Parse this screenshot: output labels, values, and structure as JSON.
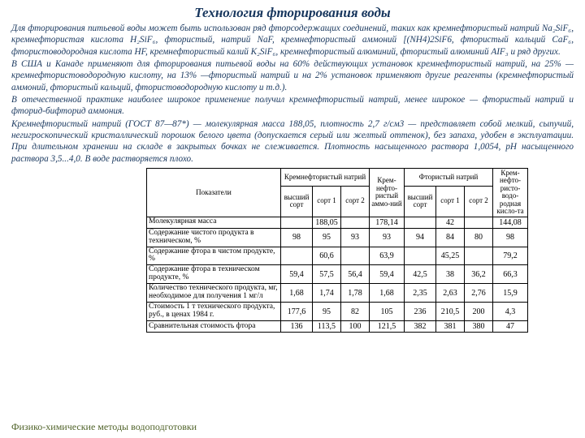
{
  "title": "Технология фторирования воды",
  "paragraphs": {
    "p1": "Для фторирования питьевой воды может быть использован ряд фторсодержащих соединений, таких как кремнефтористый натрий Na₂SiF₆, кремнефтористая кислота H₂SiF₆, фтористый, натрий NaF, кремнефтористый аммоний [(NH4)2SiF6, фтористый кальций CaF₆, фтористоводородная кислота HF, кремнефтористый калий K₂SiF₆, кремнефтористый алюминий, фтористый алюминий АIF₃ и ряд других.",
    "p2": "В США и Канаде применяют для фторирования питьевой воды на 60% действующих установок кремнефтористый натрий, на 25% — кремнефтористоводородную кислоту, на 13% —фтористый натрий и на 2% установок применяют другие реагенты (кремнефтористый аммоний, фтористый кальций, фтористоводородную кислоту и т.д.).",
    "p3": "В отечественной практике наиболее широкое применение получил кремнефтористый натрий, менее широкое — фтористый натрий и фторид-бифторид аммония.",
    "p4": "Кремнефтористый натрий (ГОСТ 87—87*) — молекулярная масса 188,05, плотность 2,7 г/см3 — представляет собой мелкий, сыпучий, негигроскопический кристаллический порошок белого цвета (допускается серый или желтый оттенок), без запаха, удобен в эксплуатации. При длительном хранении на складе в закрытых бочках не слеживается. Плотность насыщенного раствора 1,0054, рН насыщенного раствора 3,5...4,0. В воде растворяется плохо."
  },
  "footer": "Физико-химические методы водоподготовки",
  "table": {
    "head": {
      "indicators": "Показатели",
      "g1": "Кремнефтористый натрий",
      "g2": "Крем-нефто-ристый аммо-ний",
      "g3": "Фтористый натрий",
      "g4": "Крем-нефто-ристо-водо-родная кисло-та",
      "c1": "высший сорт",
      "c2": "сорт 1",
      "c3": "сорт 2",
      "c4": "высший сорт",
      "c5": "сорт 1",
      "c6": "сорт 2"
    },
    "rows": [
      {
        "label": "Молекулярная масса",
        "v": [
          "",
          "188,05",
          "",
          "178,14",
          "",
          "42",
          "",
          "144,08"
        ]
      },
      {
        "label": "Содержание чистого продукта в техническом, %",
        "v": [
          "98",
          "95",
          "93",
          "93",
          "94",
          "84",
          "80",
          "98"
        ]
      },
      {
        "label": "Содержание фтора в чистом продукте, %",
        "v": [
          "",
          "60,6",
          "",
          "63,9",
          "",
          "45,25",
          "",
          "79,2"
        ]
      },
      {
        "label": "Содержание фтора в техническом продукте, %",
        "v": [
          "59,4",
          "57,5",
          "56,4",
          "59,4",
          "42,5",
          "38",
          "36,2",
          "66,3"
        ]
      },
      {
        "label": "Количество технического продукта, мг, необходимое для получения 1 мг/л",
        "v": [
          "1,68",
          "1,74",
          "1,78",
          "1,68",
          "2,35",
          "2,63",
          "2,76",
          "15,9"
        ]
      },
      {
        "label": "Стоимость 1 т технического продукта, руб., в ценах 1984 г.",
        "v": [
          "177,6",
          "95",
          "82",
          "105",
          "236",
          "210,5",
          "200",
          "4,3"
        ]
      },
      {
        "label": "Сравнительная стоимость фтора",
        "v": [
          "136",
          "113,5",
          "100",
          "121,5",
          "382",
          "381",
          "380",
          "47"
        ]
      }
    ]
  }
}
